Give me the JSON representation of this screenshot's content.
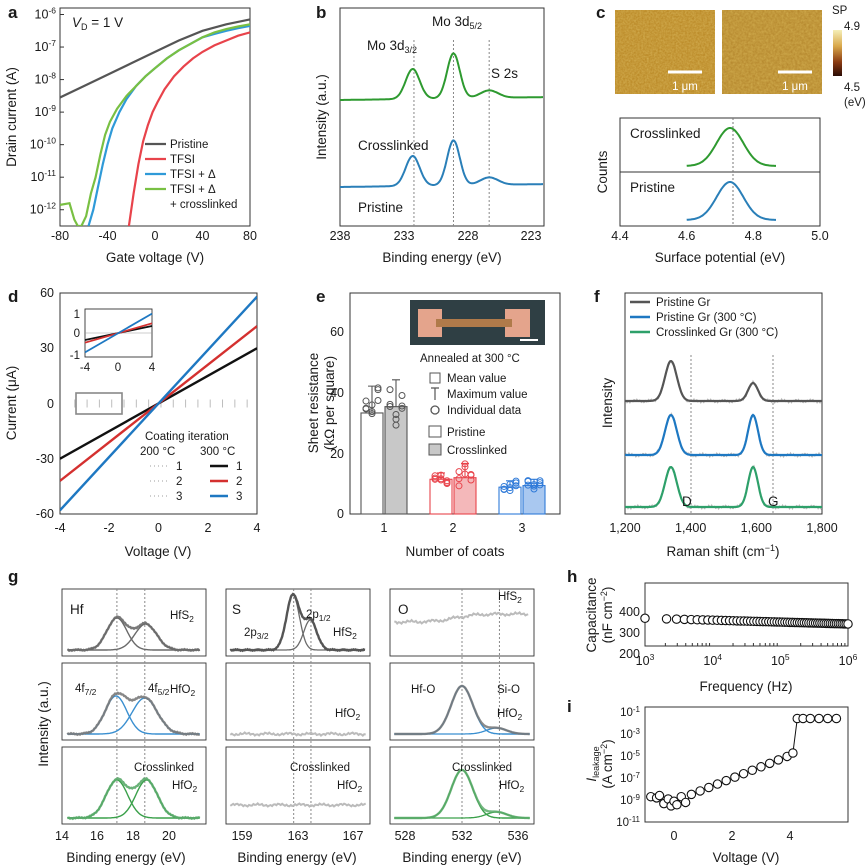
{
  "colors": {
    "pristine": "#555555",
    "tfsi": "#e8434b",
    "tfsi_anneal": "#2f9ad8",
    "tfsi_cross": "#79c043",
    "green": "#2e9a30",
    "blue": "#2a7fb8",
    "c200": "#bdbdbd",
    "c300_1": "#111111",
    "c300_2": "#d4302f",
    "c300_3": "#1e78c2",
    "bar_red": "#e8434b",
    "bar_blue": "#2f7ad8",
    "raman_grey": "#555555",
    "raman_blue": "#1e78c2",
    "raman_green": "#2ea06a",
    "xps_grey": "#6a6a6a",
    "xps_fit_blue": "#3a8fd0",
    "xps_green": "#5aaa6a",
    "xps_fit_green": "#3aa04a",
    "xps_noise": "#bbbbbb",
    "afm_dark": "#b07a18",
    "afm_light": "#d8b860"
  },
  "chart_data": [
    {
      "id": "a",
      "type": "line",
      "panel_label": "a",
      "annotation": "V",
      "annotation_sub": "D",
      "annotation_tail": " = 1 V",
      "xlabel": "Gate voltage (V)",
      "ylabel": "Drain current (A)",
      "xlim": [
        -80,
        80
      ],
      "ylim_log10": [
        -12.5,
        -5.8
      ],
      "xticks": [
        "-80",
        "-40",
        "0",
        "40",
        "80"
      ],
      "yticks": [
        {
          "base": "10",
          "exp": "-12",
          "v": -12
        },
        {
          "base": "10",
          "exp": "-11",
          "v": -11
        },
        {
          "base": "10",
          "exp": "-10",
          "v": -10
        },
        {
          "base": "10",
          "exp": "-9",
          "v": -9
        },
        {
          "base": "10",
          "exp": "-8",
          "v": -8
        },
        {
          "base": "10",
          "exp": "-7",
          "v": -7
        },
        {
          "base": "10",
          "exp": "-6",
          "v": -6
        }
      ],
      "legend": [
        "Pristine",
        "TFSI",
        "TFSI + Δ",
        "TFSI + Δ",
        "+ crosslinked"
      ],
      "series": [
        {
          "name": "Pristine",
          "color_key": "pristine",
          "x": [
            -80,
            -60,
            -40,
            -20,
            0,
            20,
            40,
            60,
            80
          ],
          "log10y": [
            -8.55,
            -8.2,
            -7.85,
            -7.5,
            -7.15,
            -6.8,
            -6.5,
            -6.3,
            -6.15
          ]
        },
        {
          "name": "TFSI",
          "color_key": "tfsi",
          "x": [
            -22,
            -18,
            -14,
            -10,
            -6,
            -2,
            2,
            8,
            16,
            24,
            32,
            40,
            50,
            60,
            70,
            80
          ],
          "log10y": [
            -12.5,
            -11.5,
            -10.6,
            -9.9,
            -9.4,
            -9.0,
            -8.7,
            -8.3,
            -7.9,
            -7.6,
            -7.35,
            -7.15,
            -6.95,
            -6.8,
            -6.65,
            -6.55
          ]
        },
        {
          "name": "TFSI + Δ",
          "color_key": "tfsi_anneal",
          "x": [
            -56,
            -52,
            -48,
            -44,
            -40,
            -36,
            -30,
            -24,
            -16,
            -8,
            0,
            10,
            20,
            30,
            40,
            50,
            60,
            70,
            80
          ],
          "log10y": [
            -12.5,
            -12.0,
            -11.3,
            -10.6,
            -10.0,
            -9.5,
            -9.0,
            -8.6,
            -8.2,
            -7.9,
            -7.65,
            -7.35,
            -7.1,
            -6.9,
            -6.7,
            -6.6,
            -6.5,
            -6.42,
            -6.35
          ]
        },
        {
          "name": "TFSI + Δ + crosslinked",
          "color_key": "tfsi_cross",
          "x": [
            -80,
            -72,
            -68,
            -65,
            -62,
            -58,
            -54,
            -50,
            -46,
            -42,
            -38,
            -32,
            -24,
            -16,
            -8,
            0,
            10,
            20,
            30,
            40,
            50,
            60,
            70,
            80
          ],
          "log10y": [
            -11.85,
            -11.8,
            -12.3,
            -12.5,
            -12.5,
            -12.2,
            -11.5,
            -11.0,
            -10.3,
            -9.7,
            -9.3,
            -8.9,
            -8.5,
            -8.2,
            -7.9,
            -7.65,
            -7.35,
            -7.1,
            -6.9,
            -6.7,
            -6.55,
            -6.45,
            -6.37,
            -6.3
          ]
        }
      ]
    },
    {
      "id": "b",
      "type": "line",
      "panel_label": "b",
      "xlabel": "Binding energy (eV)",
      "ylabel": "Intensity (a.u.)",
      "xlim": [
        238,
        222
      ],
      "xticks": [
        "238",
        "233",
        "228",
        "223"
      ],
      "peak_labels": [
        {
          "text": "Mo 3d",
          "sub": "3/2",
          "x": 232.5
        },
        {
          "text": "Mo 3d",
          "sub": "5/2",
          "x": 229.3
        },
        {
          "text": "S 2s",
          "x": 226.3
        }
      ],
      "curve_labels": [
        "Crosslinked",
        "Pristine"
      ],
      "reference_lines_ev": [
        232.2,
        229.1,
        226.3
      ],
      "series": [
        {
          "name": "Crosslinked",
          "color_key": "green",
          "peaks": [
            {
              "c": 232.3,
              "a": 1.0,
              "w": 0.55
            },
            {
              "c": 229.1,
              "a": 1.5,
              "w": 0.5
            },
            {
              "c": 226.3,
              "a": 0.25,
              "w": 0.7
            }
          ]
        },
        {
          "name": "Pristine",
          "color_key": "blue",
          "peaks": [
            {
              "c": 232.3,
              "a": 1.0,
              "w": 0.55
            },
            {
              "c": 229.1,
              "a": 1.5,
              "w": 0.5
            },
            {
              "c": 226.3,
              "a": 0.25,
              "w": 0.7
            }
          ]
        }
      ]
    },
    {
      "id": "c",
      "type": "line",
      "panel_label": "c",
      "colorbar_title": "SP",
      "colorbar_max": "4.9",
      "colorbar_min": "4.5",
      "colorbar_unit": "(eV)",
      "scale_bar": "1 μm",
      "xlabel": "Surface potential (eV)",
      "ylabel": "Counts",
      "xlim": [
        4.4,
        5.0
      ],
      "xticks": [
        "4.4",
        "4.6",
        "4.8",
        "5.0"
      ],
      "series": [
        {
          "name": "Crosslinked",
          "color_key": "green",
          "center": 4.73,
          "sigma": 0.04
        },
        {
          "name": "Pristine",
          "color_key": "blue",
          "center": 4.73,
          "sigma": 0.04
        }
      ]
    },
    {
      "id": "d",
      "type": "line",
      "panel_label": "d",
      "xlabel": "Voltage (V)",
      "ylabel": "Current (μA)",
      "xlim": [
        -4,
        4
      ],
      "ylim": [
        -60,
        60
      ],
      "xticks": [
        "-4",
        "-2",
        "0",
        "2",
        "4"
      ],
      "yticks": [
        "-60",
        "-30",
        "0",
        "30",
        "60"
      ],
      "legend_title": "Coating iteration",
      "legend_cols": [
        "200 °C",
        "300 °C"
      ],
      "legend_rows": [
        "1",
        "2",
        "3"
      ],
      "slopes_uA_per_V": [
        7.5,
        10.5,
        14.5
      ],
      "inset": {
        "xticks": [
          "-4",
          "0",
          "4"
        ],
        "yticks": [
          "1",
          "0",
          "-1"
        ],
        "xlim": [
          -4,
          4
        ],
        "ylim": [
          -1,
          1
        ]
      }
    },
    {
      "id": "e",
      "type": "bar",
      "panel_label": "e",
      "xlabel": "Number of coats",
      "ylabel_line1": "Sheet resistance",
      "ylabel_line2": "(kΩ per square)",
      "categories": [
        "1",
        "2",
        "3"
      ],
      "ylim": [
        0,
        70
      ],
      "yticks": [
        "0",
        "20",
        "40",
        "60"
      ],
      "annotation": "Annealed at 300 °C",
      "legend": [
        "Mean value",
        "Maximum value",
        "Individual data",
        "Pristine",
        "Crosslinked"
      ],
      "series": [
        {
          "name": "Pristine",
          "values": [
            32,
            11,
            8.5
          ],
          "max": [
            40.5,
            13,
            10.5
          ]
        },
        {
          "name": "Crosslinked",
          "values": [
            34,
            11.5,
            9
          ],
          "max": [
            42.5,
            16,
            11
          ]
        }
      ]
    },
    {
      "id": "f",
      "type": "line",
      "panel_label": "f",
      "xlabel": "Raman shift (cm",
      "xlabel_sup": "−1",
      "xlabel_tail": ")",
      "ylabel": "Intensity",
      "xlim": [
        1200,
        1800
      ],
      "xticks": [
        "1,200",
        "1,400",
        "1,600",
        "1,800"
      ],
      "peak_labels": [
        "D",
        "G"
      ],
      "reference_lines": [
        1340,
        1590
      ],
      "series": [
        {
          "name": "Pristine Gr",
          "color_key": "raman_grey",
          "D": 1.0,
          "G": 0.45
        },
        {
          "name": "Pristine Gr (300 °C)",
          "color_key": "raman_blue",
          "D": 1.0,
          "G": 1.0
        },
        {
          "name": "Crosslinked Gr (300 °C)",
          "color_key": "raman_green",
          "D": 1.0,
          "G": 1.0
        }
      ]
    },
    {
      "id": "g",
      "type": "line",
      "panel_label": "g",
      "ylabel": "Intensity (a.u.)",
      "columns": [
        {
          "element": "Hf",
          "xlabel": "Binding energy (eV)",
          "xlim": [
            14,
            22
          ],
          "xticks": [
            "14",
            "16",
            "18",
            "20"
          ],
          "peak_labels": [
            {
              "t": "4f",
              "s": "7/2"
            },
            {
              "t": "4f",
              "s": "5/2"
            }
          ],
          "rows": [
            {
              "label": "HfS",
              "sub": "2"
            },
            {
              "label": "HfO",
              "sub": "2"
            },
            {
              "label": "HfO",
              "sub": "2",
              "pre": "Crosslinked"
            }
          ]
        },
        {
          "element": "S",
          "xlabel": "Binding energy (eV)",
          "xlim": [
            158,
            168
          ],
          "xticks": [
            "159",
            "163",
            "167"
          ],
          "peak_labels": [
            {
              "t": "2p",
              "s": "3/2"
            },
            {
              "t": "2p",
              "s": "1/2"
            }
          ],
          "rows": [
            {
              "label": "HfS",
              "sub": "2"
            },
            {
              "label": "HfO",
              "sub": "2"
            },
            {
              "label": "HfO",
              "sub": "2",
              "pre": "Crosslinked"
            }
          ]
        },
        {
          "element": "O",
          "xlabel": "Binding energy (eV)",
          "xlim": [
            526,
            536
          ],
          "xticks": [
            "528",
            "532",
            "536"
          ],
          "peak_labels": [
            {
              "t": "Hf-O"
            },
            {
              "t": "Si-O"
            }
          ],
          "rows": [
            {
              "label": "HfS",
              "sub": "2"
            },
            {
              "label": "HfO",
              "sub": "2"
            },
            {
              "label": "HfO",
              "sub": "2",
              "pre": "Crosslinked"
            }
          ]
        }
      ]
    },
    {
      "id": "h",
      "type": "scatter",
      "panel_label": "h",
      "xlabel": "Frequency (Hz)",
      "ylabel_line1": "Capacitance",
      "ylabel_line2": "(nF cm",
      "ylabel_sup": "−2",
      "ylabel_tail": ")",
      "xlim_log10": [
        3,
        6
      ],
      "ylim": [
        150,
        450
      ],
      "yticks": [
        "200",
        "300",
        "400"
      ],
      "xticks": [
        {
          "base": "10",
          "exp": "3"
        },
        {
          "base": "10",
          "exp": "4"
        },
        {
          "base": "10",
          "exp": "5"
        },
        {
          "base": "10",
          "exp": "6"
        }
      ],
      "y_start": 282,
      "y_end": 255
    },
    {
      "id": "i",
      "type": "scatter",
      "panel_label": "i",
      "xlabel": "Voltage (V)",
      "ylabel_main": "I",
      "ylabel_sub": "leakage",
      "ylabel_unit": "(A cm",
      "ylabel_sup": "−2",
      "ylabel_tail": ")",
      "xlim": [
        -1,
        6
      ],
      "xticks": [
        "0",
        "2",
        "4"
      ],
      "ylim_log10": [
        -11,
        -1
      ],
      "yticks": [
        {
          "base": "10",
          "exp": "-1"
        },
        {
          "base": "10",
          "exp": "-3"
        },
        {
          "base": "10",
          "exp": "-5"
        },
        {
          "base": "10",
          "exp": "-7"
        },
        {
          "base": "10",
          "exp": "-9"
        },
        {
          "base": "10",
          "exp": "-11"
        }
      ],
      "points": [
        [
          -0.8,
          -8.8
        ],
        [
          -0.6,
          -8.9
        ],
        [
          -0.5,
          -8.7
        ],
        [
          -0.35,
          -9.4
        ],
        [
          -0.2,
          -9.0
        ],
        [
          -0.1,
          -9.6
        ],
        [
          0.0,
          -9.2
        ],
        [
          0.1,
          -9.5
        ],
        [
          0.25,
          -8.8
        ],
        [
          0.4,
          -9.3
        ],
        [
          0.6,
          -8.6
        ],
        [
          0.9,
          -8.3
        ],
        [
          1.2,
          -8.0
        ],
        [
          1.5,
          -7.7
        ],
        [
          1.8,
          -7.4
        ],
        [
          2.1,
          -7.1
        ],
        [
          2.4,
          -6.8
        ],
        [
          2.7,
          -6.5
        ],
        [
          3.0,
          -6.2
        ],
        [
          3.3,
          -5.9
        ],
        [
          3.6,
          -5.6
        ],
        [
          3.9,
          -5.3
        ],
        [
          4.1,
          -5.0
        ],
        [
          4.25,
          -2.0
        ],
        [
          4.45,
          -2.0
        ],
        [
          4.7,
          -2.0
        ],
        [
          5.0,
          -2.0
        ],
        [
          5.3,
          -2.0
        ],
        [
          5.6,
          -2.0
        ]
      ]
    }
  ]
}
